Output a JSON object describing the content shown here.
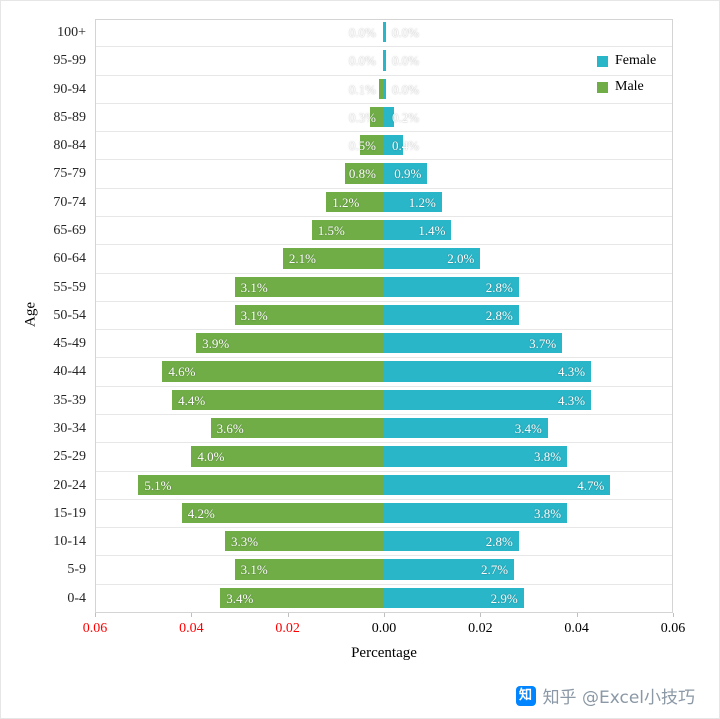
{
  "chart_data": {
    "type": "bar",
    "subtype": "population-pyramid",
    "title": "",
    "xlabel": "Percentage",
    "ylabel": "Age",
    "grid": true,
    "legend_position": "top-right",
    "x_axis": {
      "max_percent": 6,
      "ticks": [
        {
          "label": "0.06",
          "color": "#ff0000"
        },
        {
          "label": "0.04",
          "color": "#ff0000"
        },
        {
          "label": "0.02",
          "color": "#ff0000"
        },
        {
          "label": "0.00",
          "color": "#000000"
        },
        {
          "label": "0.02",
          "color": "#000000"
        },
        {
          "label": "0.04",
          "color": "#000000"
        },
        {
          "label": "0.06",
          "color": "#000000"
        }
      ]
    },
    "categories": [
      "100+",
      "95-99",
      "90-94",
      "85-89",
      "80-84",
      "75-79",
      "70-74",
      "65-69",
      "60-64",
      "55-59",
      "50-54",
      "45-49",
      "40-44",
      "35-39",
      "30-34",
      "25-29",
      "20-24",
      "15-19",
      "10-14",
      "5-9",
      "0-4"
    ],
    "series": [
      {
        "name": "Male",
        "side": "left",
        "color": "#70ad47",
        "values": [
          0.0,
          0.0,
          0.1,
          0.3,
          0.5,
          0.8,
          1.2,
          1.5,
          2.1,
          3.1,
          3.1,
          3.9,
          4.6,
          4.4,
          3.6,
          4.0,
          5.1,
          4.2,
          3.3,
          3.1,
          3.4
        ],
        "labels": [
          "0.0%",
          "0.0%",
          "0.1%",
          "0.3%",
          "0.5%",
          "0.8%",
          "1.2%",
          "1.5%",
          "2.1%",
          "3.1%",
          "3.1%",
          "3.9%",
          "4.6%",
          "4.4%",
          "3.6%",
          "4.0%",
          "5.1%",
          "4.2%",
          "3.3%",
          "3.1%",
          "3.4%"
        ]
      },
      {
        "name": "Female",
        "side": "right",
        "color": "#29b6c8",
        "values": [
          0.0,
          0.0,
          0.0,
          0.2,
          0.4,
          0.9,
          1.2,
          1.4,
          2.0,
          2.8,
          2.8,
          3.7,
          4.3,
          4.3,
          3.4,
          3.8,
          4.7,
          3.8,
          2.8,
          2.7,
          2.9
        ],
        "labels": [
          "0.0%",
          "0.0%",
          "0.0%",
          "0.2%",
          "0.4%",
          "0.9%",
          "1.2%",
          "1.4%",
          "2.0%",
          "2.8%",
          "2.8%",
          "3.7%",
          "4.3%",
          "4.3%",
          "3.4%",
          "3.8%",
          "4.7%",
          "3.8%",
          "2.8%",
          "2.7%",
          "2.9%"
        ]
      }
    ],
    "legend": [
      {
        "label": "Female",
        "color": "#29b6c8"
      },
      {
        "label": "Male",
        "color": "#70ad47"
      }
    ]
  },
  "watermark": {
    "logo_char": "知",
    "logo_color": "#0084ff",
    "text": "知乎 @Excel小技巧"
  }
}
